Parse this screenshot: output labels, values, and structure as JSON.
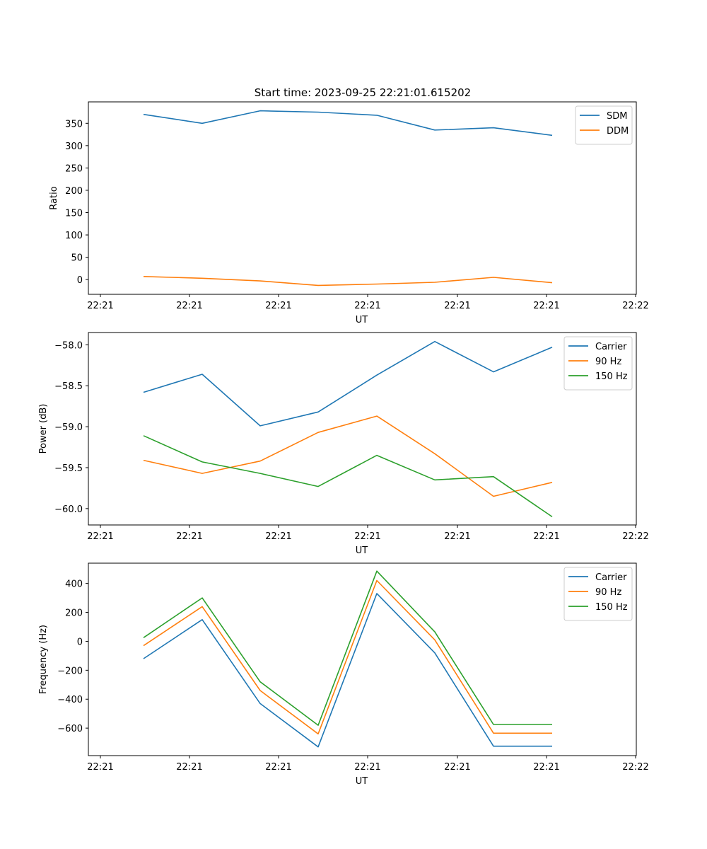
{
  "title": "Start time: 2023-09-25 22:21:01.615202",
  "chart_data": [
    {
      "type": "line",
      "xlabel": "UT",
      "ylabel": "Ratio",
      "xticklabels": [
        "22:21",
        "22:21",
        "22:21",
        "22:21",
        "22:21",
        "22:21",
        "22:22"
      ],
      "yticks": [
        0,
        50,
        100,
        150,
        200,
        250,
        300,
        350
      ],
      "ylim": [
        -33,
        398
      ],
      "legend_position": "top-right",
      "series": [
        {
          "name": "SDM",
          "color": "#1f77b4",
          "values": [
            370,
            350,
            378,
            375,
            368,
            335,
            340,
            323
          ]
        },
        {
          "name": "DDM",
          "color": "#ff7f0e",
          "values": [
            7,
            3,
            -3,
            -13,
            -10,
            -6,
            5,
            -7
          ]
        }
      ]
    },
    {
      "type": "line",
      "xlabel": "UT",
      "ylabel": "Power (dB)",
      "xticklabels": [
        "22:21",
        "22:21",
        "22:21",
        "22:21",
        "22:21",
        "22:21",
        "22:22"
      ],
      "yticks": [
        -60.0,
        -59.5,
        -59.0,
        -58.5,
        -58.0
      ],
      "yticklabels": [
        "−60.0",
        "−59.5",
        "−59.0",
        "−58.5",
        "−58.0"
      ],
      "ylim": [
        -60.2,
        -57.85
      ],
      "legend_position": "top-right",
      "series": [
        {
          "name": "Carrier",
          "color": "#1f77b4",
          "values": [
            -58.58,
            -58.36,
            -58.99,
            -58.82,
            -58.37,
            -57.96,
            -58.33,
            -58.03
          ]
        },
        {
          "name": "90 Hz",
          "color": "#ff7f0e",
          "values": [
            -59.41,
            -59.57,
            -59.42,
            -59.07,
            -58.87,
            -59.33,
            -59.85,
            -59.68
          ]
        },
        {
          "name": "150 Hz",
          "color": "#2ca02c",
          "values": [
            -59.11,
            -59.43,
            -59.57,
            -59.73,
            -59.35,
            -59.65,
            -59.61,
            -60.1
          ]
        }
      ]
    },
    {
      "type": "line",
      "xlabel": "UT",
      "ylabel": "Frequency (Hz)",
      "xticklabels": [
        "22:21",
        "22:21",
        "22:21",
        "22:21",
        "22:21",
        "22:21",
        "22:22"
      ],
      "yticks": [
        -600,
        -400,
        -200,
        0,
        200,
        400
      ],
      "yticklabels": [
        "−600",
        "−400",
        "−200",
        "0",
        "200",
        "400"
      ],
      "ylim": [
        -790,
        540
      ],
      "legend_position": "top-right",
      "series": [
        {
          "name": "Carrier",
          "color": "#1f77b4",
          "values": [
            -120,
            150,
            -430,
            -730,
            330,
            -80,
            -725,
            -725
          ]
        },
        {
          "name": "90 Hz",
          "color": "#ff7f0e",
          "values": [
            -30,
            240,
            -340,
            -640,
            420,
            10,
            -635,
            -635
          ]
        },
        {
          "name": "150 Hz",
          "color": "#2ca02c",
          "values": [
            25,
            300,
            -280,
            -580,
            485,
            65,
            -575,
            -575
          ]
        }
      ]
    }
  ]
}
